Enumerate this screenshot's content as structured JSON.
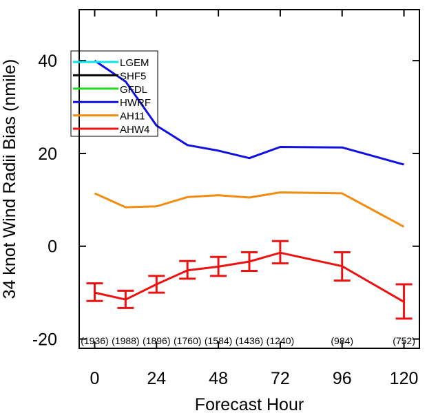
{
  "chart_data": {
    "type": "line",
    "title": "",
    "xlabel": "Forecast Hour",
    "ylabel": "34 knot Wind Radii Bias (nmile)",
    "xlim": [
      -6,
      126
    ],
    "ylim": [
      -22,
      51
    ],
    "xticks": [
      0,
      24,
      48,
      72,
      96,
      120
    ],
    "yticks": [
      -20,
      0,
      20,
      40
    ],
    "xtick_labels": [
      "0",
      "24",
      "48",
      "72",
      "96",
      "120"
    ],
    "ytick_labels": [
      "-20",
      "0",
      "20",
      "40"
    ],
    "grid": false,
    "legend_position": "top-left",
    "legend": [
      {
        "name": "LGEM",
        "color": "#00e5ee"
      },
      {
        "name": "SHF5",
        "color": "#000000"
      },
      {
        "name": "GFDL",
        "color": "#22dd22"
      },
      {
        "name": "HWRF",
        "color": "#1010e0"
      },
      {
        "name": "AH11",
        "color": "#f08c10"
      },
      {
        "name": "AHW4",
        "color": "#ee1111"
      }
    ],
    "series": [
      {
        "name": "HWRF",
        "color": "#1010e0",
        "x": [
          0,
          12,
          24,
          36,
          48,
          60,
          72,
          96,
          120
        ],
        "y": [
          40.0,
          35.5,
          26.0,
          21.8,
          20.6,
          19.0,
          21.4,
          21.3,
          17.6
        ]
      },
      {
        "name": "AH11",
        "color": "#f08c10",
        "x": [
          0,
          12,
          24,
          36,
          48,
          60,
          72,
          96,
          120
        ],
        "y": [
          11.4,
          8.4,
          8.6,
          10.6,
          11.0,
          10.5,
          11.6,
          11.4,
          4.2
        ]
      },
      {
        "name": "AHW4",
        "color": "#ee1111",
        "x": [
          0,
          12,
          24,
          36,
          48,
          60,
          72,
          96,
          120
        ],
        "y": [
          -10.0,
          -11.5,
          -8.2,
          -5.2,
          -4.4,
          -3.3,
          -1.4,
          -4.3,
          -12.0
        ],
        "err_low": [
          -11.8,
          -13.3,
          -10.0,
          -7.0,
          -6.4,
          -5.3,
          -3.7,
          -7.4,
          -15.6
        ],
        "err_high": [
          -8.0,
          -9.6,
          -6.4,
          -3.2,
          -2.3,
          -1.3,
          1.1,
          -1.3,
          -8.2
        ]
      }
    ],
    "sample_counts": [
      {
        "x": 0,
        "label": "(1936)"
      },
      {
        "x": 12,
        "label": "(1988)"
      },
      {
        "x": 24,
        "label": "(1896)"
      },
      {
        "x": 36,
        "label": "(1760)"
      },
      {
        "x": 48,
        "label": "(1584)"
      },
      {
        "x": 60,
        "label": "(1436)"
      },
      {
        "x": 72,
        "label": "(1240)"
      },
      {
        "x": 96,
        "label": "(984)"
      },
      {
        "x": 120,
        "label": "(752)"
      }
    ]
  }
}
